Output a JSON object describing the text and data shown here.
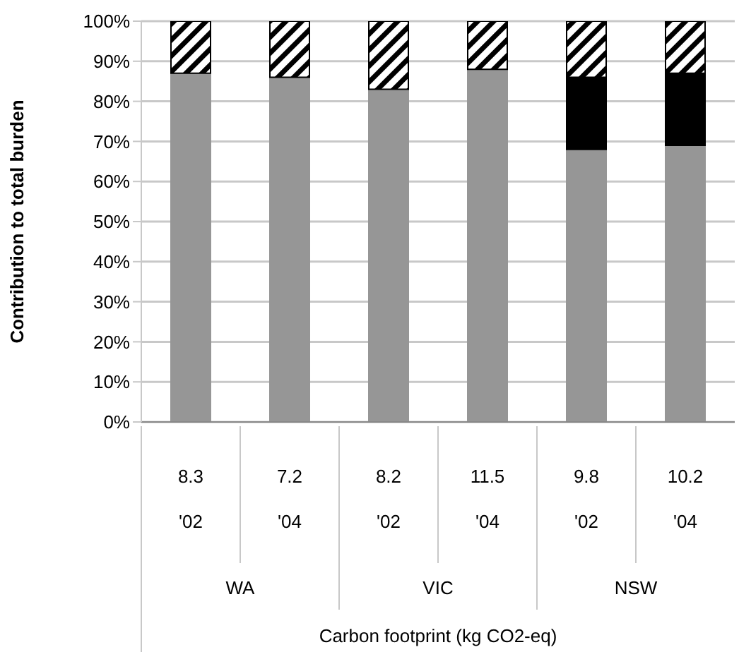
{
  "chart_data": {
    "type": "bar",
    "stacked": true,
    "ylabel": "Contribution to total burden",
    "categories": [
      "8.3\n'02",
      "7.2\n'04",
      "8.2\n'02",
      "11.5\n'04",
      "9.8\n'02",
      "10.2\n'04"
    ],
    "annotations": [
      "WA",
      "VIC",
      "NSW",
      "Carbon footprint (kg CO2-eq)"
    ],
    "series": [
      {
        "color": "#969696",
        "values": [
          87,
          86,
          83,
          88,
          68,
          69
        ]
      },
      {
        "color": "#000000",
        "values": [
          0,
          0,
          0,
          0,
          18,
          18
        ]
      },
      {
        "color": "#000000",
        "values": [
          13,
          14,
          17,
          12,
          14,
          13
        ]
      }
    ],
    "ylim": [
      0,
      100
    ],
    "yticks": [
      {
        "value": 0,
        "label": "0%"
      },
      {
        "value": 10,
        "label": "10%"
      },
      {
        "value": 20,
        "label": "20%"
      },
      {
        "value": 30,
        "label": "30%"
      },
      {
        "value": 40,
        "label": "40%"
      },
      {
        "value": 50,
        "label": "50%"
      },
      {
        "value": 60,
        "label": "60%"
      },
      {
        "value": 70,
        "label": "70%"
      },
      {
        "value": 80,
        "label": "80%"
      },
      {
        "value": 90,
        "label": "90%"
      },
      {
        "value": 100,
        "label": "100%"
      }
    ],
    "grid": "y",
    "legend": false
  }
}
